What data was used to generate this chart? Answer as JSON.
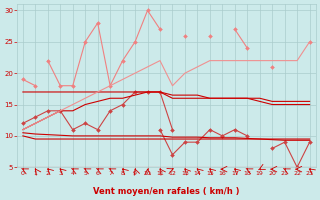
{
  "x": [
    0,
    1,
    2,
    3,
    4,
    5,
    6,
    7,
    8,
    9,
    10,
    11,
    12,
    13,
    14,
    15,
    16,
    17,
    18,
    19,
    20,
    21,
    22,
    23
  ],
  "series": [
    {
      "y": [
        19,
        18,
        null,
        null,
        null,
        null,
        null,
        null,
        null,
        null,
        null,
        null,
        null,
        null,
        null,
        null,
        null,
        null,
        null,
        null,
        null,
        null,
        null,
        null
      ],
      "color": "#f08080",
      "lw": 0.8,
      "marker": "D",
      "ms": 2.0,
      "connect_gaps": false
    },
    {
      "y": [
        null,
        null,
        22,
        18,
        18,
        25,
        28,
        18,
        22,
        25,
        30,
        27,
        null,
        26,
        null,
        26,
        null,
        27,
        24,
        null,
        null,
        null,
        null,
        25
      ],
      "color": "#f08080",
      "lw": 0.8,
      "marker": "D",
      "ms": 2.0,
      "connect_gaps": false
    },
    {
      "y": [
        null,
        null,
        null,
        null,
        null,
        null,
        null,
        null,
        null,
        null,
        null,
        null,
        null,
        null,
        null,
        null,
        null,
        null,
        null,
        null,
        21,
        null,
        null,
        null
      ],
      "color": "#f08080",
      "lw": 0.8,
      "marker": "D",
      "ms": 2.0,
      "connect_gaps": false
    },
    {
      "y": [
        12,
        13,
        14,
        14,
        11,
        12,
        11,
        14,
        15,
        17,
        17,
        17,
        11,
        null,
        null,
        null,
        null,
        null,
        null,
        null,
        null,
        null,
        null,
        null
      ],
      "color": "#cc4444",
      "lw": 0.8,
      "marker": "D",
      "ms": 2.0,
      "connect_gaps": false
    },
    {
      "y": [
        null,
        null,
        null,
        null,
        null,
        null,
        null,
        null,
        null,
        null,
        null,
        11,
        7,
        9,
        9,
        11,
        10,
        11,
        10,
        null,
        8,
        9,
        5,
        9
      ],
      "color": "#cc4444",
      "lw": 0.8,
      "marker": "D",
      "ms": 2.0,
      "connect_gaps": false
    },
    {
      "y": [
        10,
        9.5,
        9.5,
        9.5,
        9.5,
        9.5,
        9.5,
        9.5,
        9.5,
        9.5,
        9.5,
        9.5,
        9.5,
        9.5,
        9.5,
        9.5,
        9.5,
        9.5,
        9.5,
        9.5,
        9.5,
        9.5,
        9.5,
        9.5
      ],
      "color": "#cc0000",
      "lw": 0.8,
      "marker": null,
      "ms": 0,
      "connect_gaps": true
    },
    {
      "y": [
        10.5,
        10.3,
        10.2,
        10.1,
        10.0,
        10.0,
        10.0,
        10.0,
        10.0,
        10.0,
        10.0,
        10.0,
        9.8,
        9.8,
        9.8,
        9.7,
        9.7,
        9.7,
        9.6,
        9.5,
        9.4,
        9.3,
        9.3,
        9.3
      ],
      "color": "#cc0000",
      "lw": 0.8,
      "marker": null,
      "ms": 0,
      "connect_gaps": true
    },
    {
      "y": [
        11,
        12,
        13,
        14,
        14,
        15,
        15.5,
        16,
        16,
        16.5,
        17,
        17,
        16,
        16,
        16,
        16,
        16,
        16,
        16,
        15.5,
        15,
        15,
        15,
        15
      ],
      "color": "#cc0000",
      "lw": 0.8,
      "marker": null,
      "ms": 0,
      "connect_gaps": true
    },
    {
      "y": [
        17,
        17,
        17,
        17,
        17,
        17,
        17,
        17,
        17,
        17,
        17,
        17,
        16.5,
        16.5,
        16.5,
        16,
        16,
        16,
        16,
        16,
        15.5,
        15.5,
        15.5,
        15.5
      ],
      "color": "#cc0000",
      "lw": 0.8,
      "marker": null,
      "ms": 0,
      "connect_gaps": true
    },
    {
      "y": [
        11,
        12,
        13,
        14,
        15,
        16,
        17,
        18,
        19,
        20,
        21,
        22,
        18,
        20,
        21,
        22,
        22,
        22,
        22,
        22,
        22,
        22,
        22,
        25
      ],
      "color": "#f09090",
      "lw": 0.8,
      "marker": null,
      "ms": 0,
      "connect_gaps": true
    }
  ],
  "xlabel": "Vent moyen/en rafales ( km/h )",
  "xlim": [
    -0.5,
    23.5
  ],
  "ylim": [
    5,
    31
  ],
  "yticks": [
    5,
    10,
    15,
    20,
    25,
    30
  ],
  "xticks": [
    0,
    1,
    2,
    3,
    4,
    5,
    6,
    7,
    8,
    9,
    10,
    11,
    12,
    13,
    14,
    15,
    16,
    17,
    18,
    19,
    20,
    21,
    22,
    23
  ],
  "bg_color": "#cceaea",
  "grid_color": "#aacccc",
  "tick_color": "#cc0000",
  "label_color": "#cc0000",
  "arrow_angles": [
    225,
    200,
    210,
    210,
    225,
    225,
    225,
    225,
    210,
    190,
    180,
    200,
    130,
    205,
    210,
    210,
    270,
    210,
    225,
    315,
    270,
    225,
    270,
    215
  ]
}
